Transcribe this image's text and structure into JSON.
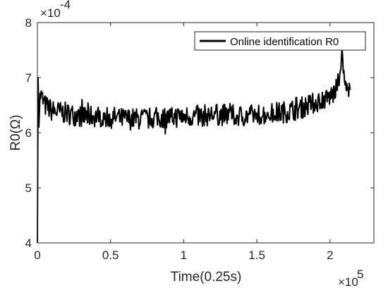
{
  "chart_data": {
    "type": "line",
    "title": "",
    "xlabel": "Time(0.25s)",
    "ylabel": "R0(Ω)",
    "x_exponent_label": "×10",
    "x_exponent": "5",
    "y_exponent_label": "×10",
    "y_exponent": "-4",
    "xlim": [
      0,
      2.3
    ],
    "ylim": [
      4,
      8
    ],
    "x_ticks": [
      0,
      0.5,
      1,
      1.5,
      2
    ],
    "x_tick_labels": [
      "0",
      "0.5",
      "1",
      "1.5",
      "2"
    ],
    "y_ticks": [
      4,
      5,
      6,
      7,
      8
    ],
    "y_tick_labels": [
      "4",
      "5",
      "6",
      "7",
      "8"
    ],
    "grid": false,
    "legend": "top-right",
    "series": [
      {
        "name": "Online identification R0",
        "color": "#000000",
        "x": [
          0,
          0.005,
          0.01,
          0.02,
          0.05,
          0.1,
          0.2,
          0.3,
          0.4,
          0.5,
          0.6,
          0.7,
          0.8,
          0.9,
          1.0,
          1.1,
          1.2,
          1.3,
          1.4,
          1.5,
          1.6,
          1.7,
          1.8,
          1.9,
          2.0,
          2.05,
          2.08,
          2.1,
          2.12,
          2.14
        ],
        "y": [
          4.0,
          7.0,
          6.3,
          6.7,
          6.5,
          6.4,
          6.35,
          6.3,
          6.3,
          6.28,
          6.25,
          6.25,
          6.27,
          6.28,
          6.3,
          6.3,
          6.33,
          6.32,
          6.3,
          6.33,
          6.35,
          6.38,
          6.45,
          6.55,
          6.65,
          6.8,
          7.45,
          6.9,
          6.75,
          6.7
        ],
        "noise_amplitude": 0.2
      }
    ]
  }
}
